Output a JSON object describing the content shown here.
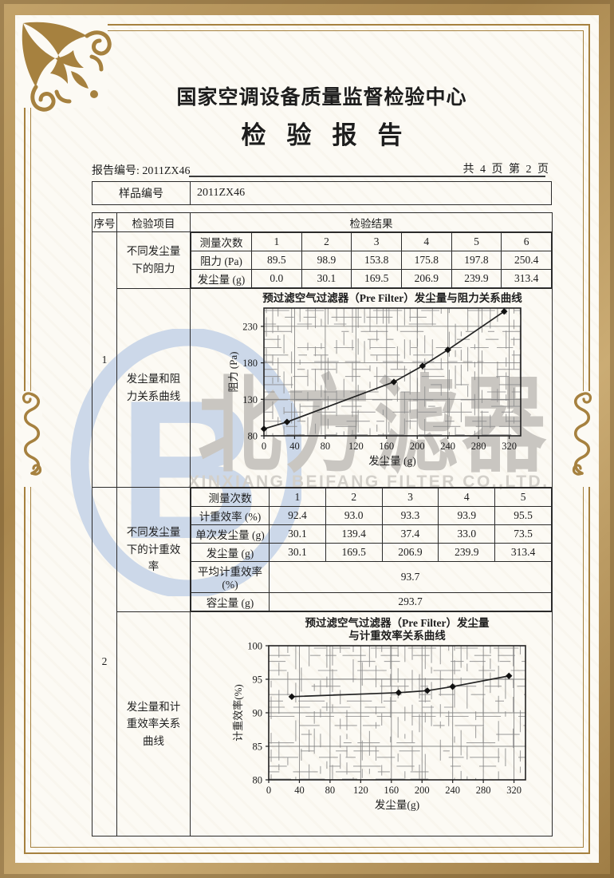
{
  "page": {
    "center_name": "国家空调设备质量监督检验中心",
    "report_title": "检验报告",
    "report_no": "报告编号: 2011ZX46",
    "page_info": "共 4 页 第 2 页"
  },
  "sample": {
    "label": "样品编号",
    "value": "2011ZX46"
  },
  "table": {
    "headers": {
      "seq": "序号",
      "item": "检验项目",
      "result": "检验结果"
    },
    "sections": [
      {
        "seq": "1",
        "row1_item": "不同发尘量下的阻力",
        "row2_item": "发尘量和阻力关系曲线"
      },
      {
        "seq": "2",
        "row1_item": "不同发尘量下的计重效率",
        "row2_item": "发尘量和计重效率关系曲线"
      }
    ]
  },
  "resistance_table": {
    "row_labels": [
      "测量次数",
      "阻力 (Pa)",
      "发尘量 (g)"
    ],
    "rows": [
      [
        "1",
        "2",
        "3",
        "4",
        "5",
        "6"
      ],
      [
        "89.5",
        "98.9",
        "153.8",
        "175.8",
        "197.8",
        "250.4"
      ],
      [
        "0.0",
        "30.1",
        "169.5",
        "206.9",
        "239.9",
        "313.4"
      ]
    ]
  },
  "efficiency_table": {
    "row_labels": [
      "测量次数",
      "计重效率 (%)",
      "单次发尘量 (g)",
      "发尘量 (g)",
      "平均计重效率 (%)",
      "容尘量 (g)"
    ],
    "rows": [
      [
        "1",
        "2",
        "3",
        "4",
        "5"
      ],
      [
        "92.4",
        "93.0",
        "93.3",
        "93.9",
        "95.5"
      ],
      [
        "30.1",
        "139.4",
        "37.4",
        "33.0",
        "73.5"
      ],
      [
        "30.1",
        "169.5",
        "206.9",
        "239.9",
        "313.4"
      ]
    ],
    "span_values": [
      "93.7",
      "293.7"
    ]
  },
  "chart_data": [
    {
      "type": "line",
      "title": "预过滤空气过滤器（Pre Filter）发尘量与阻力关系曲线",
      "xlabel": "发尘量 (g)",
      "ylabel": "阻力 (Pa)",
      "x": [
        0,
        30.1,
        169.5,
        206.9,
        239.9,
        313.4
      ],
      "y": [
        89.5,
        98.9,
        153.8,
        175.8,
        197.8,
        250.4
      ],
      "x_ticks": [
        0,
        40,
        80,
        120,
        160,
        200,
        240,
        280,
        320
      ],
      "y_ticks": [
        80,
        130,
        180,
        230
      ],
      "xlim": [
        0,
        335
      ],
      "ylim": [
        80,
        255
      ],
      "grid": "on",
      "legend": "none"
    },
    {
      "type": "line",
      "title": "预过滤空气过滤器（Pre Filter）发尘量",
      "title2": "与计重效率关系曲线",
      "xlabel": "发尘量(g)",
      "ylabel": "计重效率(%)",
      "x": [
        30.1,
        169.5,
        206.9,
        239.9,
        313.4
      ],
      "y": [
        92.4,
        93.0,
        93.3,
        93.9,
        95.5
      ],
      "x_ticks": [
        0,
        40,
        80,
        120,
        160,
        200,
        240,
        280,
        320
      ],
      "y_ticks": [
        80,
        85,
        90,
        95,
        100
      ],
      "xlim": [
        0,
        335
      ],
      "ylim": [
        80,
        100
      ],
      "grid": "on",
      "legend": "none"
    }
  ],
  "watermark": {
    "cn": "北方滤器",
    "en": "XINXIANG BEIFANG FILTER CO.,LTD."
  },
  "colors": {
    "frame_gold": "#a6813f",
    "frame_band": "#b6955c",
    "ink": "#222222",
    "grid_gray": "#8f8f8f",
    "watermark_blue": "#ccd8e9",
    "watermark_gray": "#c9c6c1"
  }
}
